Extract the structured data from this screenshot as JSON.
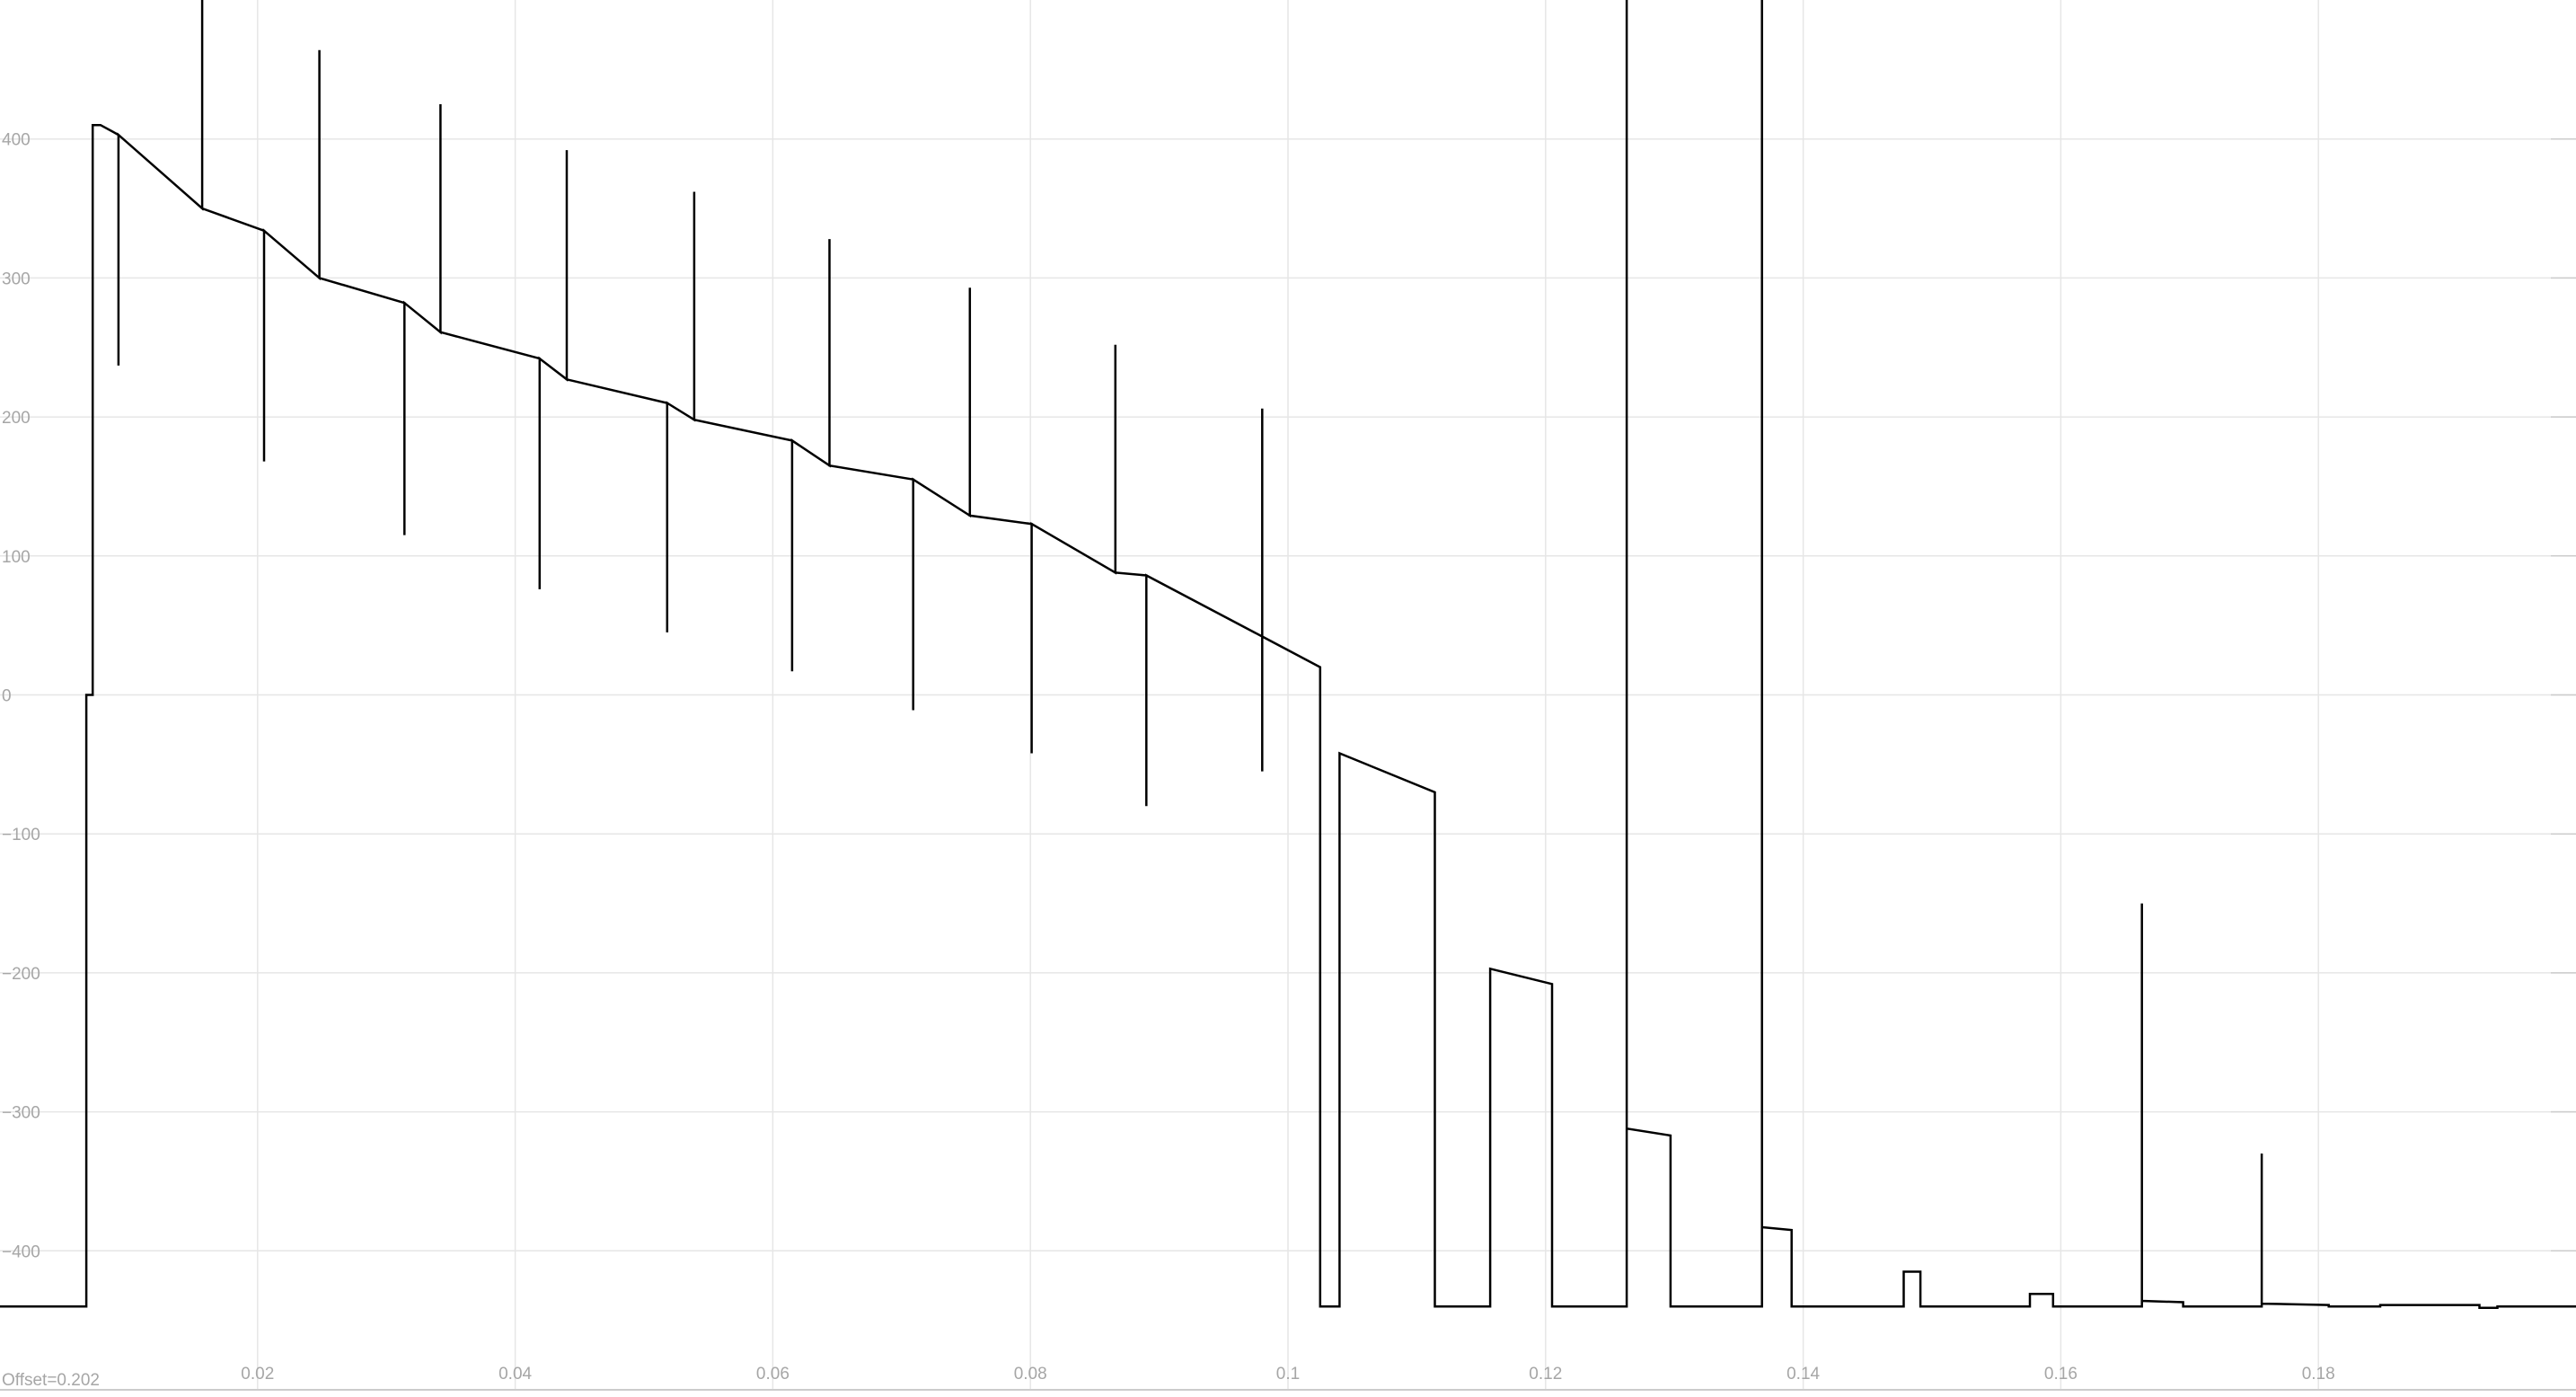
{
  "chart_data": {
    "type": "line",
    "title": "",
    "xlabel": "",
    "ylabel": "",
    "grid": true,
    "xlim": [
      0.0,
      0.2
    ],
    "ylim": [
      -500,
      500
    ],
    "x_ticks": [
      0.02,
      0.04,
      0.06,
      0.08,
      0.1,
      0.12,
      0.14,
      0.16,
      0.18
    ],
    "x_tick_labels": [
      "0.02",
      "0.04",
      "0.06",
      "0.08",
      "0.1",
      "0.12",
      "0.14",
      "0.16",
      "0.18"
    ],
    "y_ticks": [
      400,
      300,
      200,
      100,
      0,
      -100,
      -200,
      -300,
      -400
    ],
    "y_tick_labels": [
      "400",
      "300",
      "200",
      "100",
      "0",
      "−100",
      "−200",
      "−300",
      "−400"
    ],
    "offset_label": "Offset=0.202",
    "colors": {
      "line": "#000000",
      "grid": "#e6e6e6",
      "tick_label": "#a6a6a6",
      "axis": "#cccccc",
      "background": "#ffffff"
    },
    "series": [
      {
        "points": [
          [
            0.0,
            -440
          ],
          [
            0.0067,
            -440
          ],
          [
            0.0067,
            0
          ],
          [
            0.0072,
            0
          ],
          [
            0.0072,
            410
          ],
          [
            0.0078,
            410
          ],
          [
            0.0092,
            403
          ],
          [
            0.0092,
            237
          ],
          [
            0.0092,
            403
          ],
          [
            0.0157,
            350
          ],
          [
            0.0157,
            520
          ],
          [
            0.0157,
            350
          ],
          [
            0.0205,
            334
          ],
          [
            0.0205,
            168
          ],
          [
            0.0205,
            334
          ],
          [
            0.0248,
            300
          ],
          [
            0.0248,
            464
          ],
          [
            0.0248,
            300
          ],
          [
            0.0314,
            282
          ],
          [
            0.0314,
            115
          ],
          [
            0.0314,
            282
          ],
          [
            0.0342,
            261
          ],
          [
            0.0342,
            425
          ],
          [
            0.0342,
            261
          ],
          [
            0.0419,
            242
          ],
          [
            0.0419,
            76
          ],
          [
            0.0419,
            242
          ],
          [
            0.044,
            227
          ],
          [
            0.044,
            392
          ],
          [
            0.044,
            227
          ],
          [
            0.0518,
            210
          ],
          [
            0.0518,
            45
          ],
          [
            0.0518,
            210
          ],
          [
            0.0539,
            198
          ],
          [
            0.0539,
            362
          ],
          [
            0.0539,
            198
          ],
          [
            0.0615,
            183
          ],
          [
            0.0615,
            17
          ],
          [
            0.0615,
            183
          ],
          [
            0.0644,
            165
          ],
          [
            0.0644,
            328
          ],
          [
            0.0644,
            165
          ],
          [
            0.0709,
            155
          ],
          [
            0.0709,
            -11
          ],
          [
            0.0709,
            155
          ],
          [
            0.0753,
            129
          ],
          [
            0.0753,
            293
          ],
          [
            0.0753,
            129
          ],
          [
            0.0801,
            123
          ],
          [
            0.0801,
            -42
          ],
          [
            0.0801,
            123
          ],
          [
            0.0866,
            88
          ],
          [
            0.0866,
            252
          ],
          [
            0.0866,
            88
          ],
          [
            0.089,
            86
          ],
          [
            0.089,
            -80
          ],
          [
            0.089,
            86
          ],
          [
            0.098,
            42
          ],
          [
            0.098,
            206
          ],
          [
            0.098,
            -55
          ],
          [
            0.098,
            42
          ],
          [
            0.1025,
            20
          ],
          [
            0.1025,
            -440
          ],
          [
            0.104,
            -440
          ],
          [
            0.104,
            -42
          ],
          [
            0.1114,
            -70
          ],
          [
            0.1114,
            -440
          ],
          [
            0.1157,
            -440
          ],
          [
            0.1157,
            -197
          ],
          [
            0.1205,
            -208
          ],
          [
            0.1205,
            -440
          ],
          [
            0.1263,
            -440
          ],
          [
            0.1263,
            520
          ],
          [
            0.1263,
            -312
          ],
          [
            0.1297,
            -317
          ],
          [
            0.1297,
            -440
          ],
          [
            0.1368,
            -440
          ],
          [
            0.1368,
            520
          ],
          [
            0.1368,
            -383
          ],
          [
            0.1391,
            -385
          ],
          [
            0.1391,
            -440
          ],
          [
            0.1478,
            -440
          ],
          [
            0.1478,
            -415
          ],
          [
            0.1491,
            -415
          ],
          [
            0.1491,
            -440
          ],
          [
            0.1576,
            -440
          ],
          [
            0.1576,
            -431
          ],
          [
            0.1594,
            -431
          ],
          [
            0.1594,
            -440
          ],
          [
            0.1663,
            -440
          ],
          [
            0.1663,
            -150
          ],
          [
            0.1663,
            -436
          ],
          [
            0.1695,
            -437
          ],
          [
            0.1695,
            -440
          ],
          [
            0.1756,
            -440
          ],
          [
            0.1756,
            -330
          ],
          [
            0.1756,
            -438
          ],
          [
            0.1808,
            -439
          ],
          [
            0.1808,
            -440
          ],
          [
            0.1848,
            -440
          ],
          [
            0.1848,
            -439
          ],
          [
            0.1925,
            -439
          ],
          [
            0.1925,
            -441
          ],
          [
            0.1939,
            -441
          ],
          [
            0.1939,
            -440
          ],
          [
            0.2,
            -440
          ]
        ]
      }
    ]
  }
}
